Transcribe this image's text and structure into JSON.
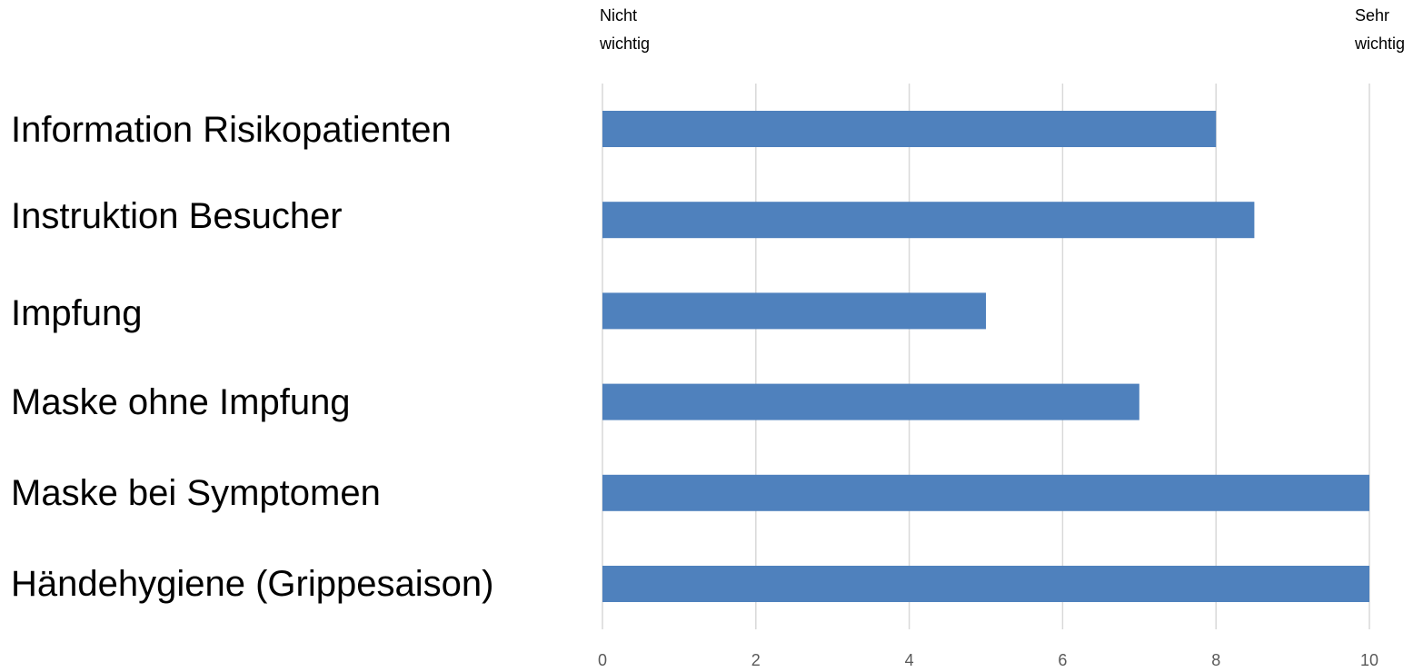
{
  "chart_data": {
    "type": "bar",
    "orientation": "horizontal",
    "categories": [
      "Information Risikopatienten",
      "Instruktion Besucher",
      "Impfung",
      "Maske ohne Impfung",
      "Maske bei Symptomen",
      "Händehygiene (Grippesaison)"
    ],
    "values": [
      8,
      8.5,
      5,
      7,
      10,
      10
    ],
    "xlim": [
      0,
      10
    ],
    "xticks": [
      "0",
      "2",
      "4",
      "6",
      "8",
      "10"
    ],
    "scale_min_label": "Nicht wichtig",
    "scale_max_label": "Sehr wichtig",
    "bar_color": "#4f81bd",
    "grid": true,
    "legend": "none"
  },
  "labels": {
    "min_line1": "Nicht",
    "min_line2": "wichtig",
    "max_line1": "Sehr",
    "max_line2": "wichtig"
  }
}
